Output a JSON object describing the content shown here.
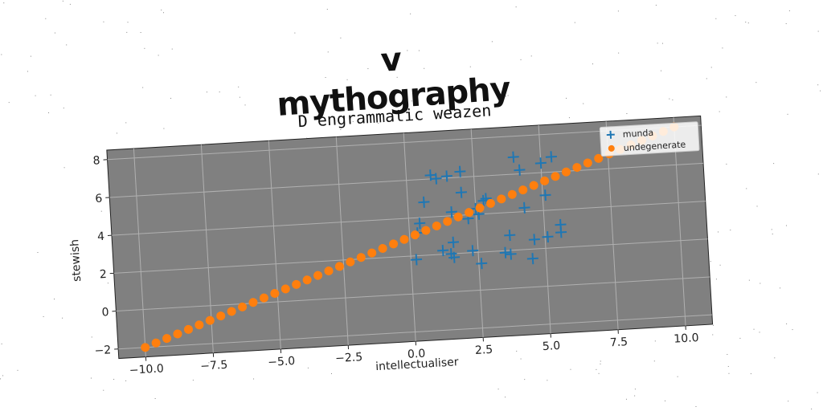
{
  "figure": {
    "title": "v mythography"
  },
  "chart_data": {
    "type": "scatter",
    "title": "D engrammatic weazen",
    "xlabel": "intellectualiser",
    "ylabel": "stewish",
    "xlim": [
      -11,
      11
    ],
    "ylim": [
      -2.5,
      8.5
    ],
    "xticks": [
      -10.0,
      -7.5,
      -5.0,
      -2.5,
      0.0,
      2.5,
      5.0,
      7.5,
      10.0
    ],
    "xtick_labels": [
      "−10.0",
      "−7.5",
      "−5.0",
      "−2.5",
      "0.0",
      "2.5",
      "5.0",
      "7.5",
      "10.0"
    ],
    "yticks": [
      -2,
      0,
      2,
      4,
      6,
      8
    ],
    "ytick_labels": [
      "−2",
      "0",
      "2",
      "4",
      "6",
      "8"
    ],
    "grid": true,
    "legend": "top-right",
    "series": [
      {
        "name": "munda",
        "marker": "plus",
        "color": "#1f77b4",
        "points": [
          [
            0.2,
            1.8
          ],
          [
            0.3,
            3.2
          ],
          [
            0.4,
            3.7
          ],
          [
            0.6,
            4.8
          ],
          [
            0.9,
            6.2
          ],
          [
            1.1,
            6.0
          ],
          [
            1.2,
            2.2
          ],
          [
            1.5,
            6.1
          ],
          [
            1.5,
            2.0
          ],
          [
            1.6,
            2.6
          ],
          [
            1.6,
            1.8
          ],
          [
            1.6,
            4.2
          ],
          [
            2.0,
            6.3
          ],
          [
            2.0,
            5.2
          ],
          [
            2.2,
            3.8
          ],
          [
            2.3,
            2.1
          ],
          [
            2.5,
            4.3
          ],
          [
            2.6,
            4.0
          ],
          [
            2.6,
            1.4
          ],
          [
            2.8,
            4.7
          ],
          [
            2.9,
            4.8
          ],
          [
            3.5,
            1.9
          ],
          [
            3.7,
            2.8
          ],
          [
            3.7,
            1.8
          ],
          [
            4.0,
            6.9
          ],
          [
            4.2,
            6.2
          ],
          [
            4.3,
            4.2
          ],
          [
            4.5,
            1.5
          ],
          [
            4.6,
            2.5
          ],
          [
            5.0,
            6.5
          ],
          [
            5.1,
            4.8
          ],
          [
            5.1,
            2.6
          ],
          [
            5.4,
            6.8
          ],
          [
            5.6,
            3.2
          ],
          [
            5.6,
            2.8
          ]
        ]
      },
      {
        "name": "undegenerate",
        "marker": "circle",
        "color": "#ff7f0e",
        "line": {
          "x_start": -10,
          "x_end": 10,
          "count": 50,
          "slope": 0.5,
          "intercept": 3
        }
      }
    ]
  }
}
